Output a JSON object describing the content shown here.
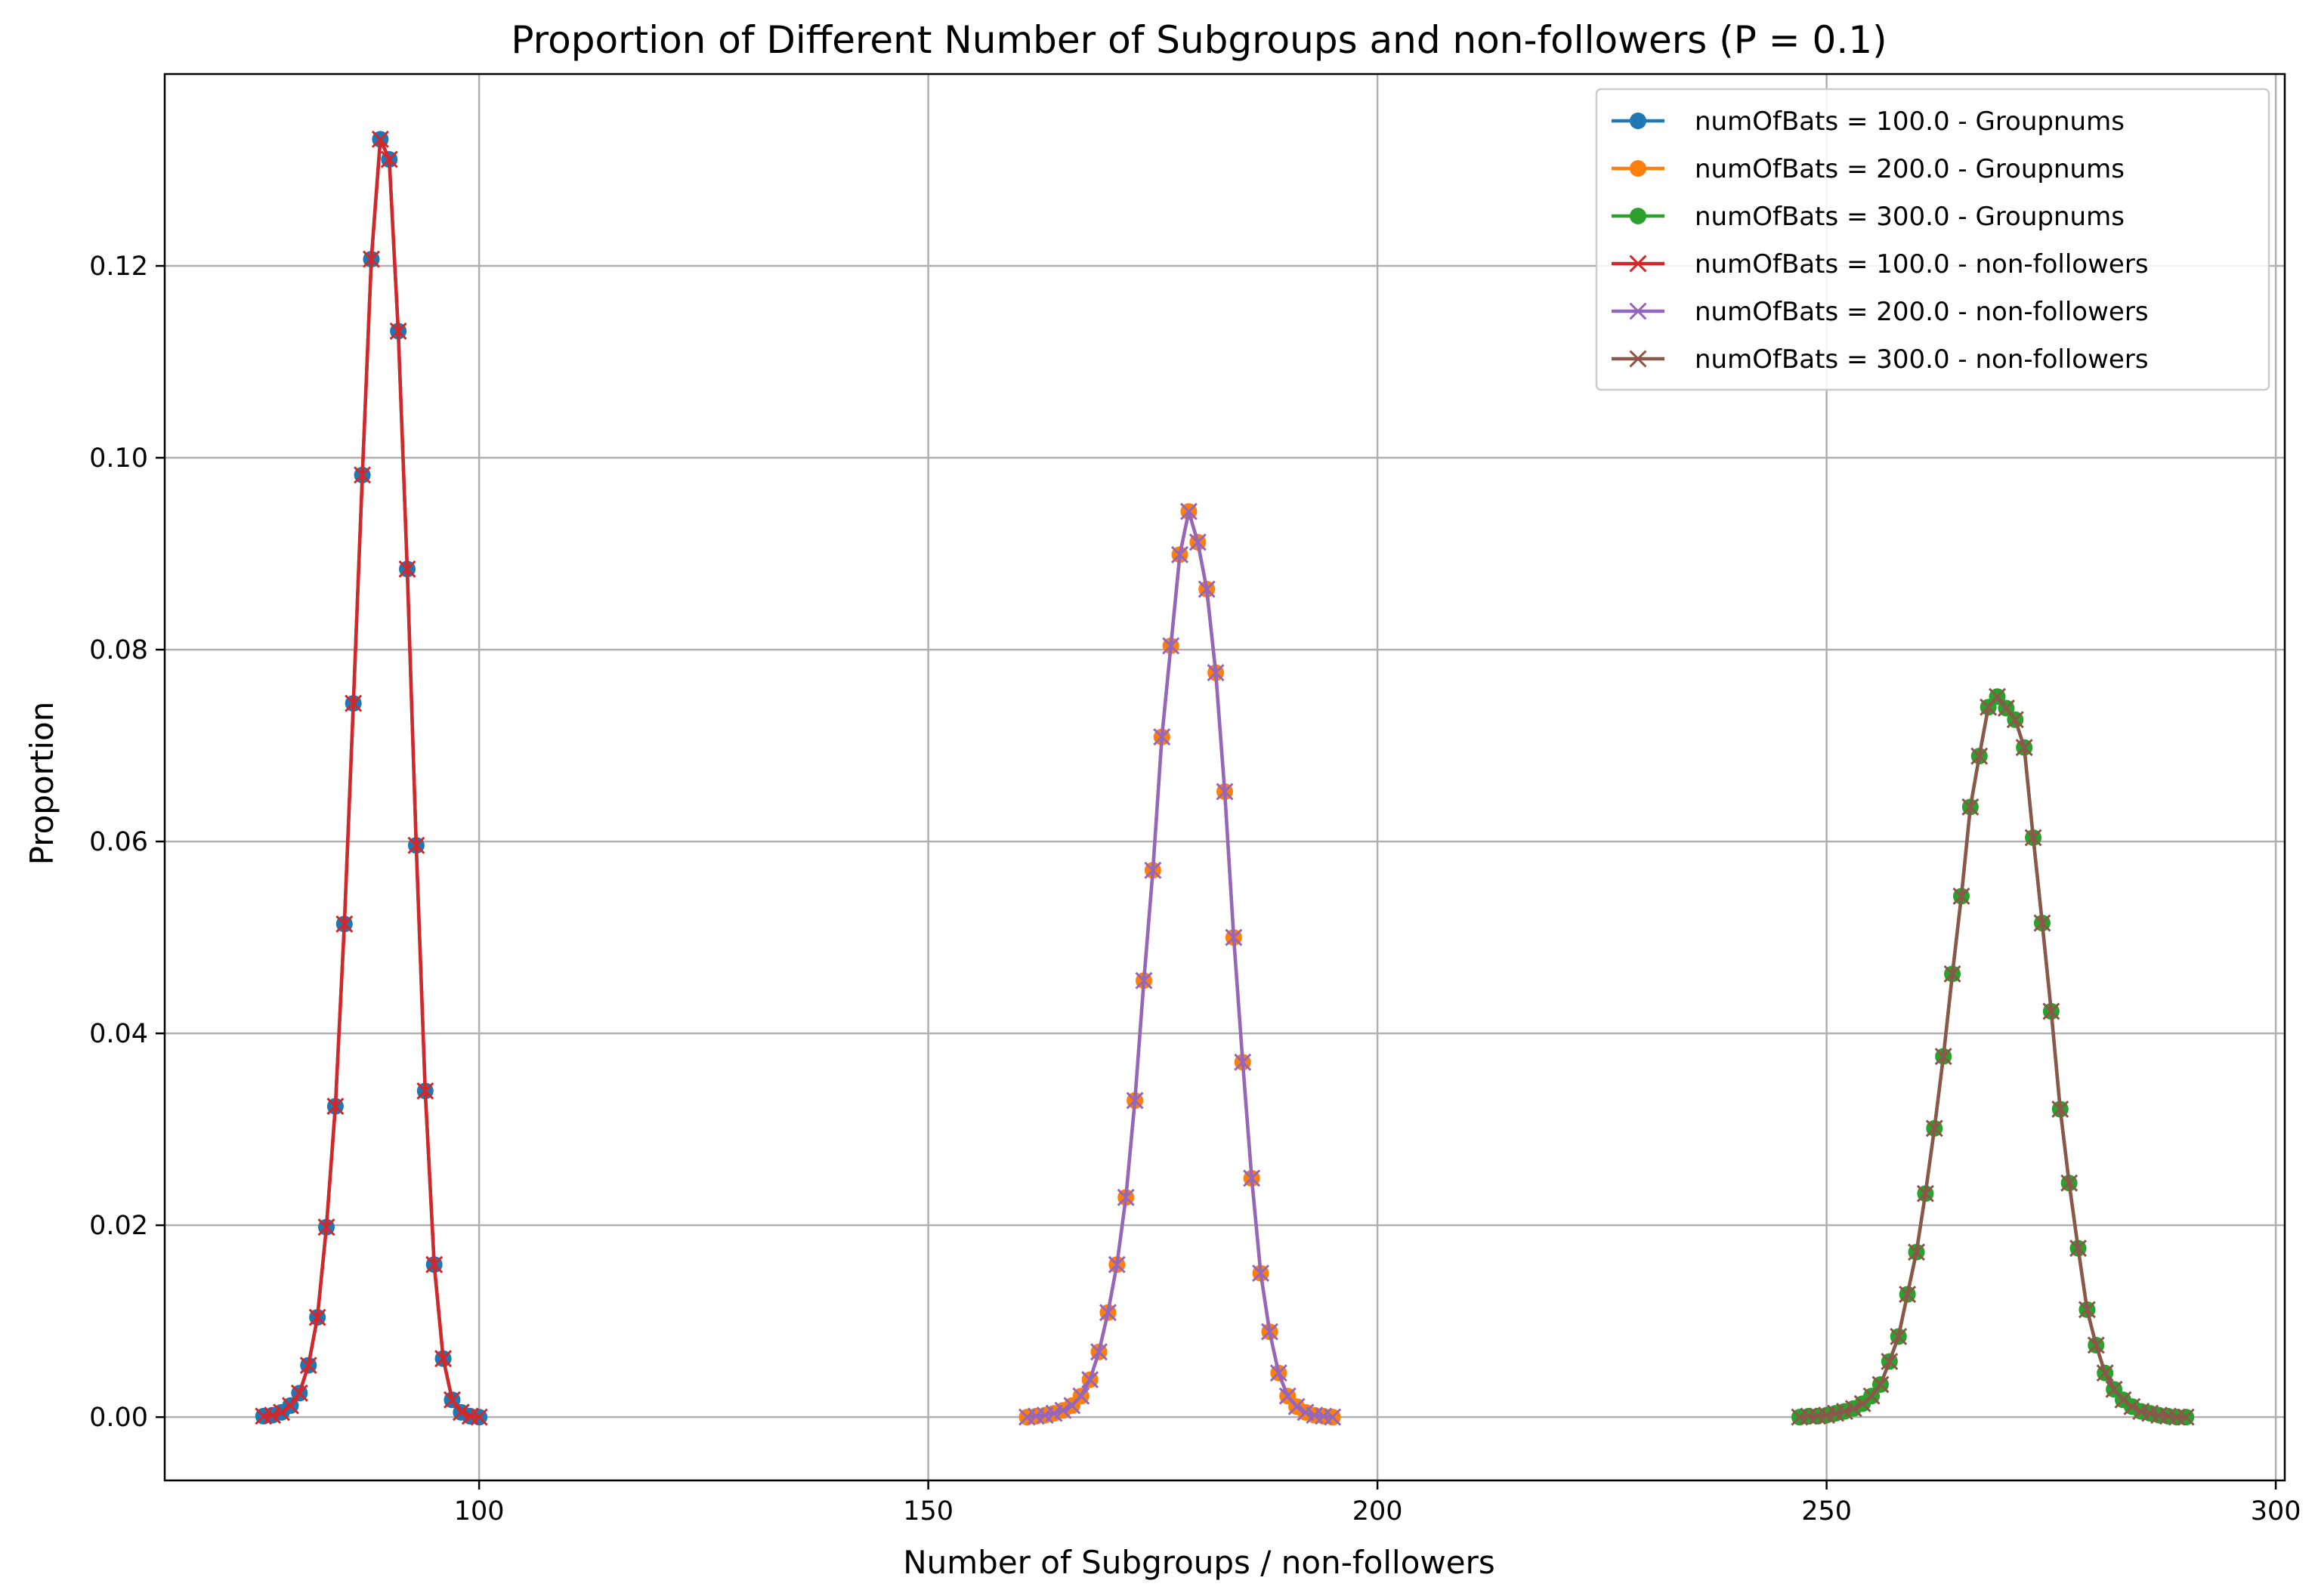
{
  "chart_data": {
    "type": "line",
    "title": "Proportion of Different Number of Subgroups and non-followers (P = 0.1)",
    "xlabel": "Number of Subgroups / non-followers",
    "ylabel": "Proportion",
    "xlim": [
      65,
      301
    ],
    "ylim": [
      -0.0066,
      0.14
    ],
    "xticks": [
      100,
      150,
      200,
      250,
      300
    ],
    "xtick_labels": [
      "100",
      "150",
      "200",
      "250",
      "300"
    ],
    "yticks": [
      0.0,
      0.02,
      0.04,
      0.06,
      0.08,
      0.1,
      0.12
    ],
    "ytick_labels": [
      "0.00",
      "0.02",
      "0.04",
      "0.06",
      "0.08",
      "0.10",
      "0.12"
    ],
    "grid": true,
    "legend_position": "top-right",
    "series": [
      {
        "name": "numOfBats = 100.0 - Groupnums",
        "color": "#1f77b4",
        "marker": "circle",
        "x": [
          76,
          77,
          78,
          79,
          80,
          81,
          82,
          83,
          84,
          85,
          86,
          87,
          88,
          89,
          90,
          91,
          92,
          93,
          94,
          95,
          96,
          97,
          98,
          99,
          100
        ],
        "y": [
          0.0001,
          0.0002,
          0.0005,
          0.0012,
          0.0025,
          0.0054,
          0.0104,
          0.0198,
          0.0324,
          0.0514,
          0.0744,
          0.0982,
          0.1207,
          0.1332,
          0.1311,
          0.1132,
          0.0884,
          0.0596,
          0.034,
          0.0159,
          0.0061,
          0.0018,
          0.0005,
          0.0001,
          0.0
        ]
      },
      {
        "name": "numOfBats = 200.0 - Groupnums",
        "color": "#ff7f0e",
        "marker": "circle",
        "x": [
          161,
          162,
          163,
          164,
          165,
          166,
          167,
          168,
          169,
          170,
          171,
          172,
          173,
          174,
          175,
          176,
          177,
          178,
          179,
          180,
          181,
          182,
          183,
          184,
          185,
          186,
          187,
          188,
          189,
          190,
          191,
          192,
          193,
          194,
          195
        ],
        "y": [
          0.0,
          0.0001,
          0.0002,
          0.0004,
          0.0007,
          0.0012,
          0.0022,
          0.0039,
          0.0068,
          0.0109,
          0.0159,
          0.0229,
          0.033,
          0.0455,
          0.057,
          0.0709,
          0.0804,
          0.0899,
          0.0944,
          0.0912,
          0.0863,
          0.0776,
          0.0652,
          0.05,
          0.037,
          0.0249,
          0.015,
          0.0089,
          0.0046,
          0.0022,
          0.0011,
          0.0005,
          0.0002,
          0.0001,
          0.0
        ]
      },
      {
        "name": "numOfBats = 300.0 - Groupnums",
        "color": "#2ca02c",
        "marker": "circle",
        "x": [
          247,
          248,
          249,
          250,
          251,
          252,
          253,
          254,
          255,
          256,
          257,
          258,
          259,
          260,
          261,
          262,
          263,
          264,
          265,
          266,
          267,
          268,
          269,
          270,
          271,
          272,
          273,
          274,
          275,
          276,
          277,
          278,
          279,
          280,
          281,
          282,
          283,
          284,
          285,
          286,
          287,
          288,
          289,
          290
        ],
        "y": [
          0.0,
          0.0001,
          0.0001,
          0.0002,
          0.0004,
          0.0006,
          0.0009,
          0.0014,
          0.0022,
          0.0034,
          0.0058,
          0.0084,
          0.0128,
          0.0172,
          0.0233,
          0.0301,
          0.0376,
          0.0462,
          0.0543,
          0.0636,
          0.0689,
          0.074,
          0.0751,
          0.0739,
          0.0727,
          0.0698,
          0.0604,
          0.0515,
          0.0423,
          0.0321,
          0.0244,
          0.0176,
          0.0112,
          0.0075,
          0.0046,
          0.0029,
          0.0018,
          0.0011,
          0.0006,
          0.0004,
          0.0002,
          0.0001,
          0.0,
          0.0
        ]
      },
      {
        "name": "numOfBats = 100.0 - non-followers",
        "color": "#d62728",
        "marker": "x",
        "x": [
          76,
          77,
          78,
          79,
          80,
          81,
          82,
          83,
          84,
          85,
          86,
          87,
          88,
          89,
          90,
          91,
          92,
          93,
          94,
          95,
          96,
          97,
          98,
          99,
          100
        ],
        "y": [
          0.0001,
          0.0002,
          0.0005,
          0.0012,
          0.0025,
          0.0054,
          0.0104,
          0.0198,
          0.0324,
          0.0514,
          0.0744,
          0.0982,
          0.1207,
          0.1332,
          0.1311,
          0.1132,
          0.0884,
          0.0596,
          0.034,
          0.0159,
          0.0061,
          0.0018,
          0.0005,
          0.0001,
          0.0
        ]
      },
      {
        "name": "numOfBats = 200.0 - non-followers",
        "color": "#9467bd",
        "marker": "x",
        "x": [
          161,
          162,
          163,
          164,
          165,
          166,
          167,
          168,
          169,
          170,
          171,
          172,
          173,
          174,
          175,
          176,
          177,
          178,
          179,
          180,
          181,
          182,
          183,
          184,
          185,
          186,
          187,
          188,
          189,
          190,
          191,
          192,
          193,
          194,
          195
        ],
        "y": [
          0.0,
          0.0001,
          0.0002,
          0.0004,
          0.0007,
          0.0012,
          0.0022,
          0.0039,
          0.0068,
          0.0109,
          0.0159,
          0.0229,
          0.033,
          0.0455,
          0.057,
          0.0709,
          0.0804,
          0.0899,
          0.0944,
          0.0912,
          0.0863,
          0.0776,
          0.0652,
          0.05,
          0.037,
          0.0249,
          0.015,
          0.0089,
          0.0046,
          0.0022,
          0.0011,
          0.0005,
          0.0002,
          0.0001,
          0.0
        ]
      },
      {
        "name": "numOfBats = 300.0 - non-followers",
        "color": "#8c564b",
        "marker": "x",
        "x": [
          247,
          248,
          249,
          250,
          251,
          252,
          253,
          254,
          255,
          256,
          257,
          258,
          259,
          260,
          261,
          262,
          263,
          264,
          265,
          266,
          267,
          268,
          269,
          270,
          271,
          272,
          273,
          274,
          275,
          276,
          277,
          278,
          279,
          280,
          281,
          282,
          283,
          284,
          285,
          286,
          287,
          288,
          289,
          290
        ],
        "y": [
          0.0,
          0.0001,
          0.0001,
          0.0002,
          0.0004,
          0.0006,
          0.0009,
          0.0014,
          0.0022,
          0.0034,
          0.0058,
          0.0084,
          0.0128,
          0.0172,
          0.0233,
          0.0301,
          0.0376,
          0.0462,
          0.0543,
          0.0636,
          0.0689,
          0.074,
          0.0751,
          0.0739,
          0.0727,
          0.0698,
          0.0604,
          0.0515,
          0.0423,
          0.0321,
          0.0244,
          0.0176,
          0.0112,
          0.0075,
          0.0046,
          0.0029,
          0.0018,
          0.0011,
          0.0006,
          0.0004,
          0.0002,
          0.0001,
          0.0,
          0.0
        ]
      }
    ]
  }
}
